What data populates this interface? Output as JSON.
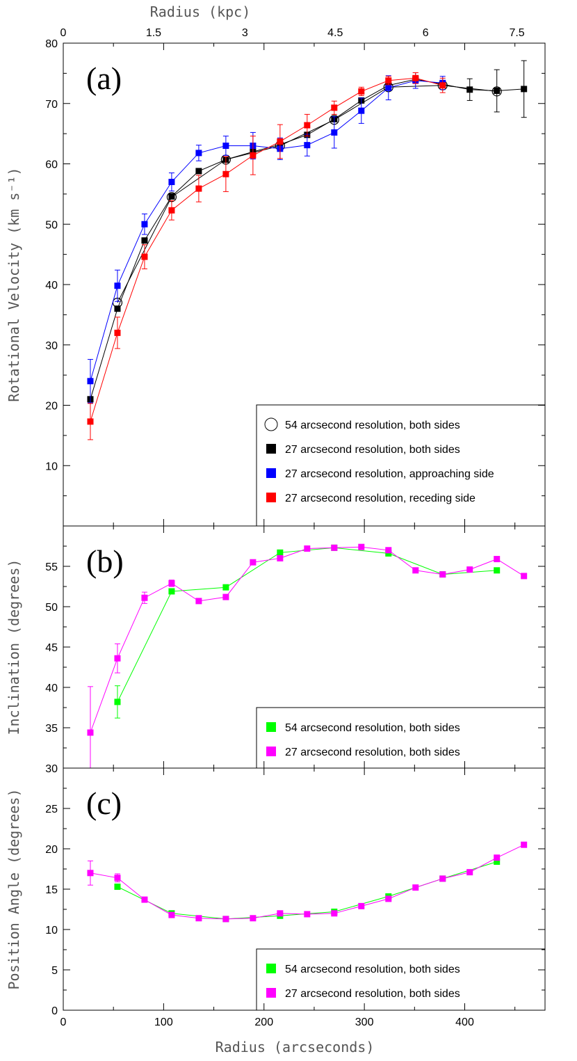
{
  "colors": {
    "black": "#000000",
    "blue": "#0000ff",
    "red": "#ff0000",
    "green": "#00ff00",
    "magenta": "#ff00ff"
  },
  "chart_data": [
    {
      "type": "line",
      "panel_label": "(a)",
      "ylabel": "Rotational Velocity (km s⁻¹)",
      "xlabel_top": "Radius (kpc)",
      "xlim": [
        0,
        480
      ],
      "ylim": [
        0,
        80
      ],
      "y_ticks": [
        10,
        20,
        30,
        40,
        50,
        60,
        70,
        80
      ],
      "top_ticks": [
        {
          "label": "0",
          "x": 0
        },
        {
          "label": "1.5",
          "x": 90
        },
        {
          "label": "3",
          "x": 181
        },
        {
          "label": "4.5",
          "x": 271
        },
        {
          "label": "6",
          "x": 361
        },
        {
          "label": "7.5",
          "x": 452
        }
      ],
      "legend_position": "bottom-right",
      "series": [
        {
          "name": "54 arcsecond resolution, both sides",
          "marker": "circle",
          "color": "#000000",
          "x": [
            54,
            108,
            162,
            216,
            270,
            324,
            378,
            432
          ],
          "y": [
            37,
            54.5,
            60.7,
            63,
            67.3,
            72.7,
            73,
            72
          ]
        },
        {
          "name": "27 arcsecond resolution, both sides",
          "marker": "square",
          "color": "#000000",
          "x": [
            27,
            54,
            81,
            108,
            135,
            162,
            189,
            216,
            243,
            270,
            297,
            324,
            351,
            378,
            405,
            432,
            459
          ],
          "y": [
            21,
            36,
            47.3,
            54.6,
            58.8,
            60.7,
            62,
            63.2,
            64.8,
            67.4,
            70.5,
            73,
            74,
            73.2,
            72.3,
            72.1,
            72.4
          ],
          "err": [
            0,
            0,
            0,
            0,
            0,
            0,
            0,
            0,
            0,
            0,
            0,
            0,
            0,
            0,
            1.8,
            3.5,
            4.7
          ]
        },
        {
          "name": "27 arcsecond resolution, approaching side",
          "marker": "square",
          "color": "#0000ff",
          "x": [
            27,
            54,
            81,
            108,
            135,
            162,
            189,
            216,
            243,
            270,
            297,
            324,
            351,
            378
          ],
          "y": [
            24,
            39.8,
            50,
            57,
            61.8,
            63,
            63,
            62.5,
            63.1,
            65.2,
            68.8,
            72.6,
            73.8,
            73.4
          ],
          "err": [
            3.6,
            2.6,
            1.7,
            1.5,
            1.3,
            1.6,
            2.2,
            1.8,
            1.8,
            2.6,
            2.1,
            2,
            1.3,
            1.1
          ]
        },
        {
          "name": "27 arcsecond resolution, receding side",
          "marker": "square",
          "color": "#ff0000",
          "x": [
            27,
            54,
            81,
            108,
            135,
            162,
            189,
            216,
            243,
            270,
            297,
            324,
            351,
            378
          ],
          "y": [
            17.3,
            32,
            44.6,
            52.3,
            55.9,
            58.3,
            61.4,
            63.7,
            66.4,
            69.3,
            72,
            73.8,
            74.2,
            73
          ],
          "err": [
            3,
            2.6,
            2,
            1.6,
            2.2,
            2.9,
            3.2,
            2.8,
            1.8,
            1.1,
            0.7,
            0.7,
            0.9,
            1.2
          ]
        }
      ]
    },
    {
      "type": "line",
      "panel_label": "(b)",
      "ylabel": "Inclination (degrees)",
      "xlim": [
        0,
        480
      ],
      "ylim": [
        30,
        60
      ],
      "y_ticks": [
        30,
        35,
        40,
        45,
        50,
        55
      ],
      "legend_position": "bottom-right",
      "series": [
        {
          "name": "54 arcsecond resolution, both sides",
          "marker": "square",
          "color": "#00ff00",
          "x": [
            54,
            108,
            162,
            216,
            270,
            324,
            378,
            432
          ],
          "y": [
            38.2,
            51.9,
            52.4,
            56.7,
            57.3,
            56.6,
            54,
            54.5
          ],
          "err": [
            2,
            0,
            0,
            0,
            0,
            0,
            0,
            0
          ]
        },
        {
          "name": "27 arcsecond resolution, both sides",
          "marker": "square",
          "color": "#ff00ff",
          "x": [
            27,
            54,
            81,
            108,
            135,
            162,
            189,
            216,
            243,
            270,
            297,
            324,
            351,
            378,
            405,
            432,
            459
          ],
          "y": [
            34.4,
            43.6,
            51.1,
            52.9,
            50.7,
            51.2,
            55.5,
            56,
            57.2,
            57.3,
            57.4,
            57,
            54.5,
            54,
            54.6,
            55.9,
            53.8
          ],
          "err": [
            5.7,
            1.8,
            0.7,
            0.4,
            0,
            0,
            0,
            0,
            0,
            0,
            0,
            0,
            0,
            0,
            0,
            0,
            0
          ]
        }
      ]
    },
    {
      "type": "line",
      "panel_label": "(c)",
      "ylabel": "Position Angle (degrees)",
      "xlabel": "Radius (arcseconds)",
      "xlim": [
        0,
        480
      ],
      "ylim": [
        0,
        30
      ],
      "y_ticks": [
        0,
        5,
        10,
        15,
        20,
        25
      ],
      "x_ticks": [
        0,
        100,
        200,
        300,
        400
      ],
      "legend_position": "bottom-right",
      "series": [
        {
          "name": "54 arcsecond resolution, both sides",
          "marker": "square",
          "color": "#00ff00",
          "x": [
            54,
            108,
            162,
            216,
            270,
            324,
            378,
            432
          ],
          "y": [
            15.3,
            12,
            11.3,
            11.7,
            12.2,
            14.1,
            16.3,
            18.4
          ]
        },
        {
          "name": "27 arcsecond resolution, both sides",
          "marker": "square",
          "color": "#ff00ff",
          "x": [
            27,
            54,
            81,
            108,
            135,
            162,
            189,
            216,
            243,
            270,
            297,
            324,
            351,
            378,
            405,
            432,
            459
          ],
          "y": [
            17,
            16.4,
            13.7,
            11.8,
            11.4,
            11.3,
            11.4,
            12,
            11.9,
            12,
            12.9,
            13.8,
            15.2,
            16.3,
            17.1,
            18.9,
            20.5
          ],
          "err": [
            1.5,
            0.5,
            0,
            0,
            0,
            0,
            0,
            0,
            0,
            0,
            0,
            0,
            0,
            0,
            0,
            0,
            0
          ]
        }
      ]
    }
  ]
}
